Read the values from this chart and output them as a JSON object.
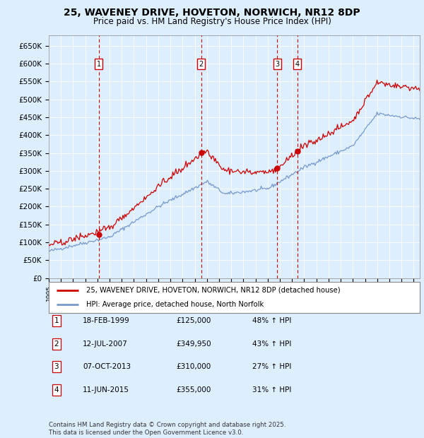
{
  "title": "25, WAVENEY DRIVE, HOVETON, NORWICH, NR12 8DP",
  "subtitle": "Price paid vs. HM Land Registry's House Price Index (HPI)",
  "hpi_label": "HPI: Average price, detached house, North Norfolk",
  "price_label": "25, WAVENEY DRIVE, HOVETON, NORWICH, NR12 8DP (detached house)",
  "price_color": "#cc0000",
  "hpi_color": "#7799cc",
  "background_color": "#ddeeff",
  "plot_bg": "#ddeeff",
  "grid_color": "#aabbdd",
  "xmin": 1995,
  "xmax": 2025.5,
  "ymin": 0,
  "ymax": 680000,
  "yticks": [
    0,
    50000,
    100000,
    150000,
    200000,
    250000,
    300000,
    350000,
    400000,
    450000,
    500000,
    550000,
    600000,
    650000
  ],
  "ytick_labels": [
    "£0",
    "£50K",
    "£100K",
    "£150K",
    "£200K",
    "£250K",
    "£300K",
    "£350K",
    "£400K",
    "£450K",
    "£500K",
    "£550K",
    "£600K",
    "£650K"
  ],
  "sale_events": [
    {
      "num": 1,
      "year": 1999.12,
      "price": 125000,
      "date": "18-FEB-1999",
      "pct": "48%",
      "dir": "↑"
    },
    {
      "num": 2,
      "year": 2007.53,
      "price": 349950,
      "date": "12-JUL-2007",
      "pct": "43%",
      "dir": "↑"
    },
    {
      "num": 3,
      "year": 2013.77,
      "price": 310000,
      "date": "07-OCT-2013",
      "pct": "27%",
      "dir": "↑"
    },
    {
      "num": 4,
      "year": 2015.44,
      "price": 355000,
      "date": "11-JUN-2015",
      "pct": "31%",
      "dir": "↑"
    }
  ],
  "table_rows": [
    {
      "num": "1",
      "date": "18-FEB-1999",
      "price": "£125,000",
      "pct": "48% ↑ HPI"
    },
    {
      "num": "2",
      "date": "12-JUL-2007",
      "price": "£349,950",
      "pct": "43% ↑ HPI"
    },
    {
      "num": "3",
      "date": "07-OCT-2013",
      "price": "£310,000",
      "pct": "27% ↑ HPI"
    },
    {
      "num": "4",
      "date": "11-JUN-2015",
      "price": "£355,000",
      "pct": "31% ↑ HPI"
    }
  ],
  "footer": "Contains HM Land Registry data © Crown copyright and database right 2025.\nThis data is licensed under the Open Government Licence v3.0."
}
